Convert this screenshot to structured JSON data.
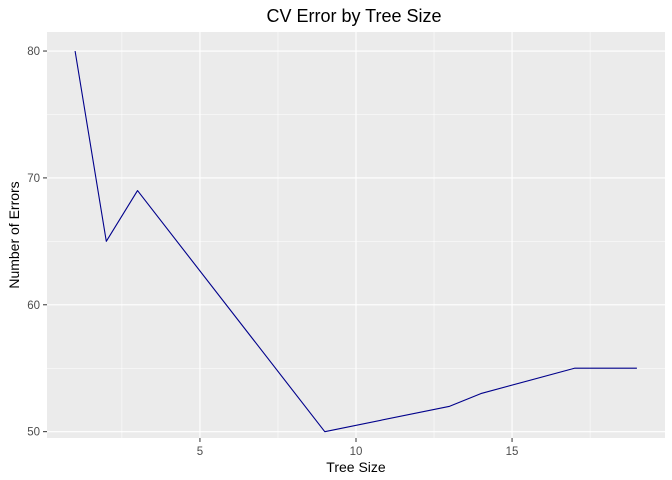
{
  "chart_data": {
    "type": "line",
    "title": "CV Error by Tree Size",
    "xlabel": "Tree Size",
    "ylabel": "Number of Errors",
    "x": [
      1,
      2,
      3,
      9,
      13,
      14,
      17,
      19
    ],
    "series": [
      {
        "values": [
          80,
          65,
          69,
          50,
          52,
          53,
          55,
          55
        ],
        "color": "#00008b"
      }
    ],
    "xlim": [
      0.1,
      19.9
    ],
    "ylim": [
      49.5,
      81.5
    ],
    "x_ticks": [
      5,
      10,
      15
    ],
    "x_tick_labels": [
      "5",
      "10",
      "15"
    ],
    "y_ticks": [
      50,
      60,
      70,
      80
    ],
    "y_tick_labels": [
      "50",
      "60",
      "70",
      "80"
    ],
    "x_minor_ticks": [
      2.5,
      7.5,
      12.5,
      17.5
    ],
    "y_minor_ticks": [
      55,
      65,
      75
    ],
    "grid": true,
    "legend": "none",
    "panel_background": "#ebebeb",
    "grid_color": "#ffffff"
  }
}
